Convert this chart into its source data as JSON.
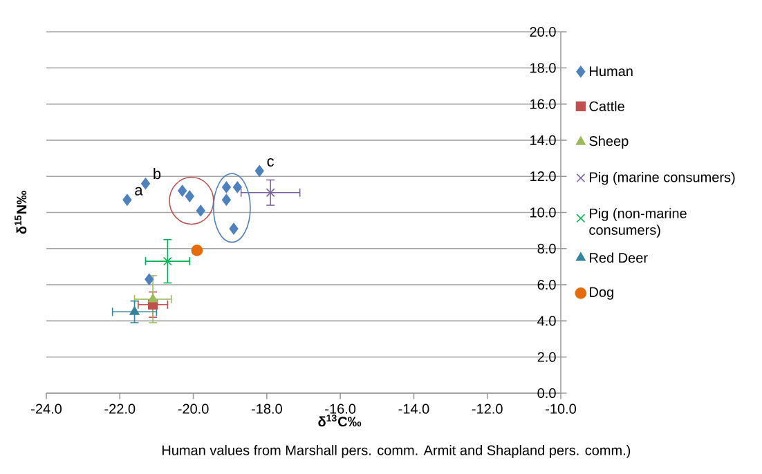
{
  "chart_data": {
    "type": "scatter",
    "xlabel": "δ$^{13}$C‰",
    "ylabel": "δ$^{15}$N‰",
    "xlim": [
      -24,
      -10
    ],
    "xticks": [
      {
        "value": -24,
        "label": "-24.0"
      },
      {
        "value": -22,
        "label": "-22.0"
      },
      {
        "value": -20,
        "label": "-20.0"
      },
      {
        "value": -18,
        "label": "-18.0"
      },
      {
        "value": -16,
        "label": "-16.0"
      },
      {
        "value": -14,
        "label": "-14.0"
      },
      {
        "value": -12,
        "label": "-12.0"
      },
      {
        "value": -10,
        "label": "-10.0"
      }
    ],
    "ylim": [
      0,
      20
    ],
    "yticks": [
      {
        "value": 0,
        "label": "0.0"
      },
      {
        "value": 2,
        "label": "2.0"
      },
      {
        "value": 4,
        "label": "4.0"
      },
      {
        "value": 6,
        "label": "6.0"
      },
      {
        "value": 8,
        "label": "8.0"
      },
      {
        "value": 10,
        "label": "10.0"
      },
      {
        "value": 12,
        "label": "12.0"
      },
      {
        "value": 14,
        "label": "14.0"
      },
      {
        "value": 16,
        "label": "16.0"
      },
      {
        "value": 18,
        "label": "18.0"
      },
      {
        "value": 20,
        "label": "20.0"
      }
    ],
    "grid": "y",
    "legend": "right",
    "series": [
      {
        "name": "Human",
        "color": "#4f81bd",
        "marker": "diamond",
        "x": [
          -21.8,
          -21.3,
          -20.3,
          -20.1,
          -19.8,
          -19.1,
          -18.8,
          -19.1,
          -18.9,
          -18.2,
          -21.2
        ],
        "values": [
          10.7,
          11.6,
          11.2,
          10.9,
          10.1,
          11.4,
          11.4,
          10.7,
          9.1,
          12.3,
          6.3
        ]
      },
      {
        "name": "Cattle",
        "color": "#c0504d",
        "marker": "square",
        "x": [
          -21.1
        ],
        "values": [
          4.9
        ],
        "errors": [
          0.7
        ],
        "xerrors": [
          0.4
        ]
      },
      {
        "name": "Sheep",
        "color": "#9bbb59",
        "marker": "triangle",
        "x": [
          -21.1
        ],
        "values": [
          5.2
        ],
        "errors": [
          1.3
        ],
        "xerrors": [
          0.5
        ]
      },
      {
        "name": "Pig (marine consumers)",
        "color": "#8064a2",
        "marker": "cross",
        "x": [
          -17.9
        ],
        "values": [
          11.1
        ],
        "errors": [
          0.7
        ],
        "xerrors": [
          0.8
        ]
      },
      {
        "name": "Pig (non-marine consumers)",
        "color": "#00b050",
        "marker": "cross",
        "x": [
          -20.7
        ],
        "values": [
          7.3
        ],
        "errors": [
          1.2
        ],
        "xerrors": [
          0.6
        ]
      },
      {
        "name": "Red Deer",
        "color": "#31859c",
        "marker": "triangle",
        "x": [
          -21.6
        ],
        "values": [
          4.5
        ],
        "errors": [
          0.6
        ],
        "xerrors": [
          0.6
        ]
      },
      {
        "name": "Dog",
        "color": "#e46c0a",
        "marker": "circle",
        "x": [
          -19.9
        ],
        "values": [
          7.9
        ]
      }
    ],
    "annotations": [
      {
        "text": "a",
        "x": -21.8,
        "y": 10.7
      },
      {
        "text": "b",
        "x": -21.3,
        "y": 11.6
      },
      {
        "text": "c",
        "x": -18.2,
        "y": 12.3
      },
      "Human values from Marshall pers. comm. Armit and Shapland pers. comm.)"
    ]
  }
}
